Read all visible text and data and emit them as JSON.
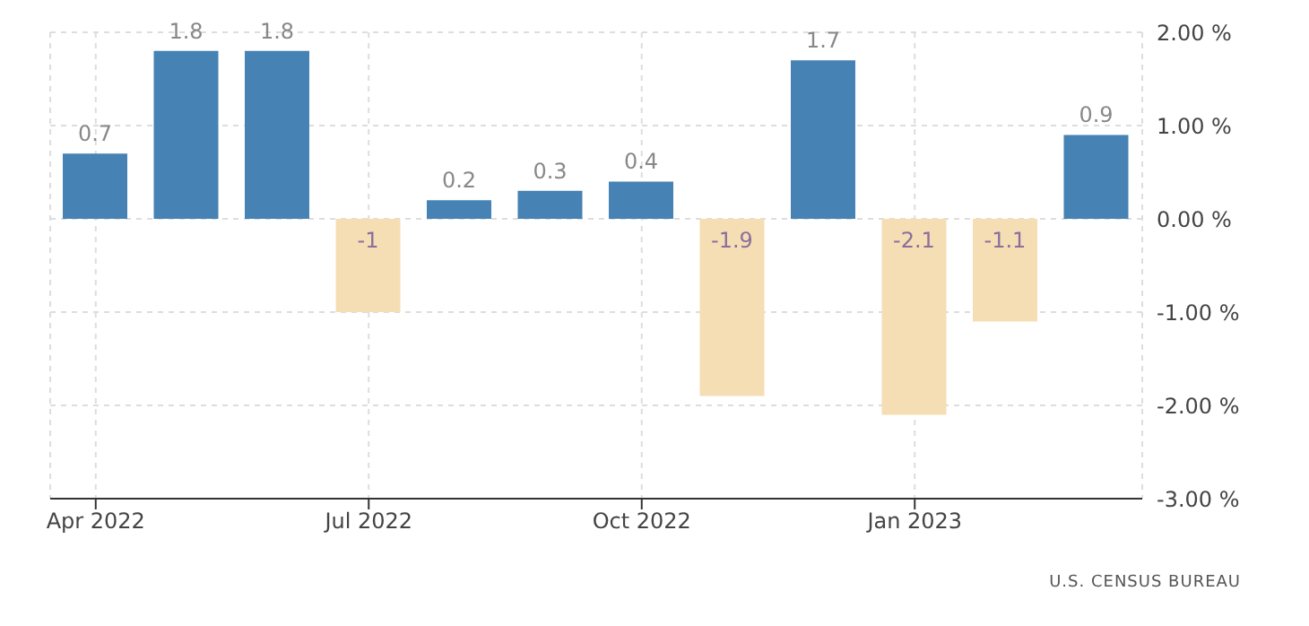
{
  "chart_data": {
    "type": "bar",
    "categories": [
      "Apr 2022",
      null,
      null,
      "Jul 2022",
      null,
      null,
      "Oct 2022",
      null,
      null,
      "Jan 2023",
      null,
      null
    ],
    "values": [
      0.7,
      1.8,
      1.8,
      -1,
      0.2,
      0.3,
      0.4,
      -1.9,
      1.7,
      -2.1,
      -1.1,
      0.9
    ],
    "colors": [
      "#4682b4",
      "#4682b4",
      "#4682b4",
      "#f5deb3",
      "#4682b4",
      "#4682b4",
      "#4682b4",
      "#f5deb3",
      "#4682b4",
      "#f5deb3",
      "#f5deb3",
      "#4682b4"
    ],
    "ylim": [
      -3,
      2
    ],
    "yticks": [
      {
        "value": 2,
        "label": "2.00 %"
      },
      {
        "value": 1,
        "label": "1.00 %"
      },
      {
        "value": 0,
        "label": "0.00 %"
      },
      {
        "value": -1,
        "label": "-1.00 %"
      },
      {
        "value": -2,
        "label": "-2.00 %"
      },
      {
        "value": -3,
        "label": "-3.00 %"
      }
    ],
    "grid": true,
    "data_labels": true,
    "annotations": [
      "U.S. CENSUS BUREAU"
    ]
  }
}
